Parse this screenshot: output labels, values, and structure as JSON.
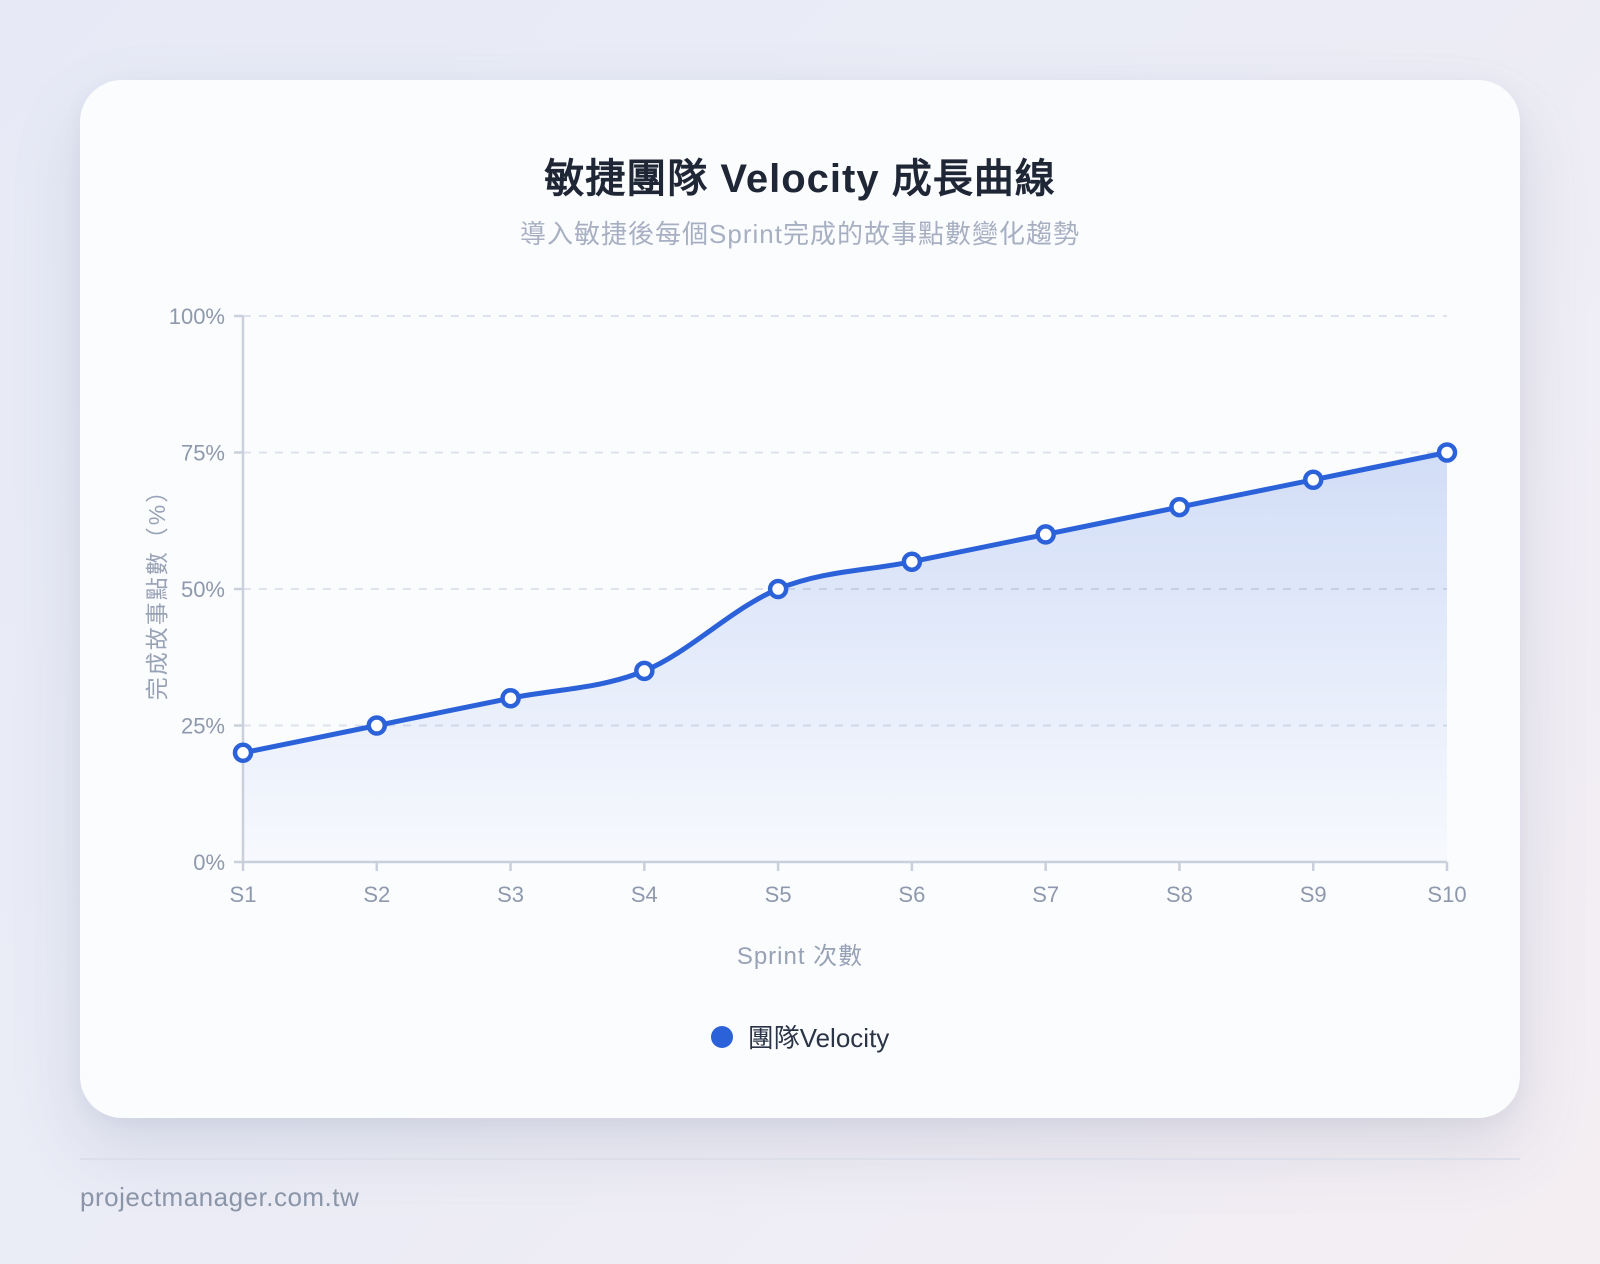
{
  "page": {
    "footer": {
      "site": "projectmanager.com.tw"
    }
  },
  "chart_data": {
    "type": "line",
    "title": "敏捷團隊 Velocity 成長曲線",
    "subtitle": "導入敏捷後每個Sprint完成的故事點數變化趨勢",
    "xlabel": "Sprint 次數",
    "ylabel": "完成故事點數（%）",
    "categories": [
      "S1",
      "S2",
      "S3",
      "S4",
      "S5",
      "S6",
      "S7",
      "S8",
      "S9",
      "S10"
    ],
    "series": [
      {
        "name": "團隊Velocity",
        "values": [
          20,
          25,
          30,
          35,
          50,
          55,
          60,
          65,
          70,
          75
        ]
      }
    ],
    "ylim": [
      0,
      100
    ],
    "yticks": [
      0,
      25,
      50,
      75,
      100
    ],
    "ytick_labels": [
      "0%",
      "25%",
      "50%",
      "75%",
      "100%"
    ],
    "grid": "horizontal-dashed",
    "line_style": "smooth-monotone",
    "area_fill": true,
    "legend_position": "bottom",
    "colors": {
      "line": "#2c62d9",
      "marker_fill": "#ffffff",
      "area_top": "rgba(44,98,217,0.20)",
      "area_bottom": "rgba(44,98,217,0.02)",
      "grid": "#dde2ec",
      "axis": "#c9d0dc",
      "tick_label": "#8e99ad"
    }
  }
}
